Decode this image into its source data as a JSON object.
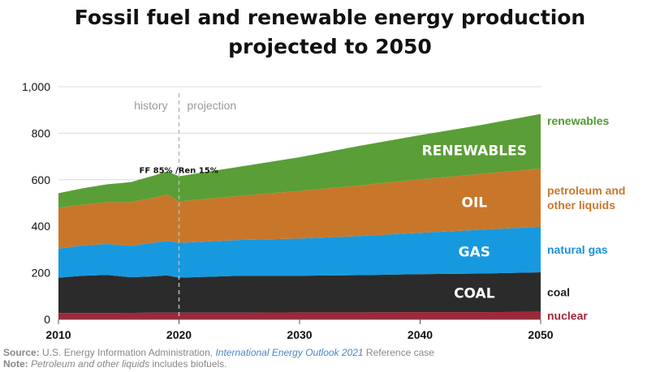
{
  "title_lines": [
    "Fossil fuel and renewable energy production",
    "projected to 2050"
  ],
  "chart_data": {
    "type": "area",
    "stacked": true,
    "x": [
      2010,
      2012,
      2014,
      2016,
      2018,
      2019,
      2020,
      2025,
      2030,
      2035,
      2040,
      2045,
      2050
    ],
    "xlim": [
      2010,
      2050
    ],
    "ylim": [
      0,
      1000
    ],
    "xticks": [
      "2010",
      "2020",
      "2030",
      "2040",
      "2050"
    ],
    "yticks": [
      "0",
      "200",
      "400",
      "600",
      "800",
      "1,000"
    ],
    "grid": true,
    "series": [
      {
        "name": "nuclear",
        "in_label": "",
        "color": "#a0273a",
        "label_color": "#a0273a",
        "values": [
          27,
          27,
          27,
          28,
          29,
          29,
          29,
          29,
          30,
          30,
          31,
          31,
          32
        ]
      },
      {
        "name": "coal",
        "in_label": "COAL",
        "color": "#2b2b2b",
        "label_color": "#222222",
        "values": [
          152,
          160,
          164,
          153,
          156,
          160,
          150,
          158,
          157,
          160,
          163,
          166,
          170
        ]
      },
      {
        "name": "natural gas",
        "in_label": "GAS",
        "color": "#1799e0",
        "label_color": "#1d8fd6",
        "values": [
          125,
          130,
          133,
          135,
          145,
          148,
          150,
          154,
          160,
          168,
          178,
          188,
          196
        ]
      },
      {
        "name": "petroleum and\nother liquids",
        "in_label": "OIL",
        "color": "#c8772a",
        "label_color": "#c8772a",
        "values": [
          176,
          176,
          180,
          188,
          194,
          200,
          178,
          190,
          205,
          218,
          230,
          240,
          250
        ]
      },
      {
        "name": "renewables",
        "in_label": "RENEWABLES",
        "color": "#5a9e37",
        "label_color": "#4e9a2f",
        "values": [
          62,
          70,
          76,
          86,
          95,
          100,
          108,
          125,
          145,
          170,
          190,
          210,
          235
        ]
      }
    ],
    "phase_divider": 2020,
    "phase_labels": [
      "history",
      "projection"
    ],
    "annotation": "FF 85% /Ren 15%"
  },
  "footer": {
    "source_label": "Source:",
    "source_text": " U.S. Energy Information Administration, ",
    "source_pub": "International Energy Outlook 2021",
    "source_tail": " Reference case",
    "note_label": "Note:",
    "note_italic": "Petroleum and other liquids",
    "note_tail": " includes biofuels."
  }
}
